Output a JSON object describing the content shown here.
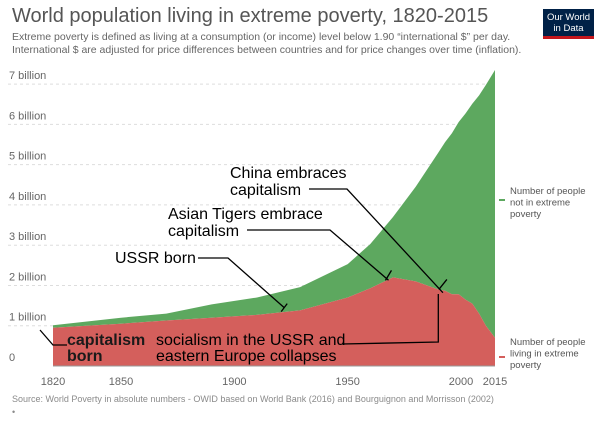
{
  "header": {
    "title": "World population living in extreme poverty, 1820-2015",
    "subtitle_line1": "Extreme poverty is defined as living at a consumption (or income) level below 1.90 “international $” per day.",
    "subtitle_line2": "International $ are adjusted for price differences between countries and for price changes over time (inflation).",
    "logo_line1": "Our World",
    "logo_line2": "in Data"
  },
  "footer": {
    "source": "Source: World Poverty in absolute numbers - OWID based on World Bank (2016) and Bourguignon and Morrisson (2002)",
    "dot": "•"
  },
  "chart_data": {
    "type": "area",
    "stacked": true,
    "x_range": [
      1820,
      2015
    ],
    "ylim": [
      0,
      7400000000
    ],
    "grid": true,
    "x_ticks": [
      {
        "value": 1820,
        "label": "1820"
      },
      {
        "value": 1850,
        "label": "1850"
      },
      {
        "value": 1900,
        "label": "1900"
      },
      {
        "value": 1950,
        "label": "1950"
      },
      {
        "value": 2000,
        "label": "2000"
      },
      {
        "value": 2015,
        "label": "2015"
      }
    ],
    "y_ticks": [
      {
        "value": 0,
        "label": "0"
      },
      {
        "value": 1000000000,
        "label": "1 billion"
      },
      {
        "value": 2000000000,
        "label": "2 billion"
      },
      {
        "value": 3000000000,
        "label": "3 billion"
      },
      {
        "value": 4000000000,
        "label": "4 billion"
      },
      {
        "value": 5000000000,
        "label": "5 billion"
      },
      {
        "value": 6000000000,
        "label": "6 billion"
      },
      {
        "value": 7000000000,
        "label": "7 billion"
      }
    ],
    "x": [
      1820,
      1850,
      1870,
      1890,
      1910,
      1929,
      1950,
      1960,
      1970,
      1980,
      1990,
      1993,
      1996,
      1999,
      2002,
      2005,
      2008,
      2011,
      2015
    ],
    "series": [
      {
        "name": "Number of people living in extreme poverty",
        "color": "#d45f5c",
        "values": [
          950000000,
          1050000000,
          1130000000,
          1200000000,
          1270000000,
          1380000000,
          1700000000,
          1930000000,
          2200000000,
          2100000000,
          1900000000,
          1870000000,
          1780000000,
          1780000000,
          1650000000,
          1550000000,
          1300000000,
          1000000000,
          700000000
        ]
      },
      {
        "name": "Number of people not in extreme poverty",
        "color": "#5da85f",
        "values": [
          60000000,
          150000000,
          170000000,
          330000000,
          430000000,
          580000000,
          830000000,
          1100000000,
          1500000000,
          2350000000,
          3400000000,
          3690000000,
          4000000000,
          4280000000,
          4620000000,
          4960000000,
          5420000000,
          5980000000,
          6650000000
        ]
      }
    ],
    "legend": {
      "placement": "right",
      "not_poor": [
        "Number of people",
        "not in extreme",
        "poverty"
      ],
      "poor": [
        "Number of people",
        "living in extreme",
        "poverty"
      ]
    },
    "annotations": [
      {
        "id": "china",
        "lines": [
          "China embraces",
          "capitalism"
        ],
        "year": 1992,
        "value": 2000000000
      },
      {
        "id": "tigers",
        "lines": [
          "Asian Tigers embrace",
          "capitalism"
        ],
        "year": 1968,
        "value": 2250000000
      },
      {
        "id": "ussr",
        "lines": [
          "USSR born"
        ],
        "year": 1922,
        "value": 1450000000
      },
      {
        "id": "capitalism",
        "lines": [
          "capitalism",
          "born"
        ],
        "year": 1820,
        "value": 850000000
      },
      {
        "id": "collapse",
        "lines": [
          "socialism in the USSR and",
          "eastern Europe collapses"
        ],
        "year": 1990,
        "value": 500000000
      }
    ]
  }
}
